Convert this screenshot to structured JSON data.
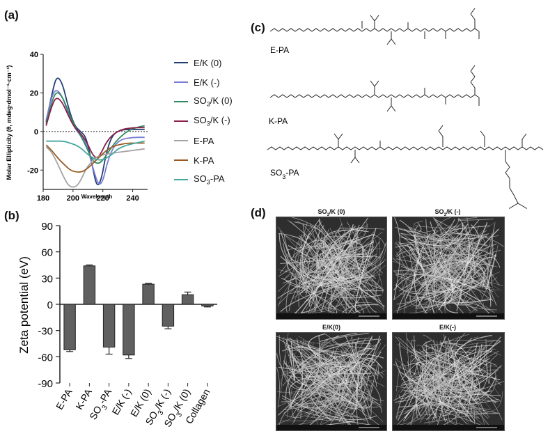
{
  "labels": {
    "a": "(a)",
    "b": "(b)",
    "c": "(c)",
    "d": "(d)"
  },
  "chart_data": [
    {
      "type": "line",
      "panel": "a",
      "title": "",
      "xlabel": "Wavelength",
      "ylabel": "Molar Ellipticity (θ, mdeg·dmol⁻¹·cm⁻¹)",
      "xlim": [
        180,
        250
      ],
      "ylim": [
        -30,
        40
      ],
      "xticks": [
        "180",
        "200",
        "220",
        "240"
      ],
      "yticks": [
        "40",
        "20",
        "0",
        "-20"
      ],
      "zero_line": "dotted",
      "series": [
        {
          "name": "E/K (0)",
          "color": "#1f3f73",
          "x": [
            182,
            186,
            189,
            193,
            197,
            201,
            205,
            209,
            213,
            216,
            219,
            222,
            226,
            232,
            240,
            248
          ],
          "y": [
            5,
            20,
            29,
            25,
            12,
            3,
            0,
            -3,
            -18,
            -29,
            -25,
            -12,
            -2,
            1,
            1,
            1
          ]
        },
        {
          "name": "E/K (-)",
          "color": "#7a7ad8",
          "x": [
            182,
            186,
            189,
            193,
            197,
            201,
            205,
            209,
            213,
            217,
            220,
            223,
            227,
            232,
            240,
            248
          ],
          "y": [
            6,
            19,
            22,
            18,
            9,
            2,
            -2,
            -6,
            -18,
            -28,
            -26,
            -16,
            -8,
            -4,
            -3,
            -3
          ]
        },
        {
          "name": "SO3/K (0)",
          "color": "#2f8a5c",
          "x": [
            182,
            186,
            189,
            193,
            197,
            201,
            205,
            209,
            213,
            217,
            221,
            225,
            230,
            236,
            242,
            248
          ],
          "y": [
            4,
            16,
            21,
            18,
            10,
            3,
            -2,
            -8,
            -15,
            -17,
            -14,
            -9,
            -4,
            0,
            2,
            3
          ]
        },
        {
          "name": "SO3/K (-)",
          "color": "#8a1f4a",
          "x": [
            182,
            186,
            189,
            193,
            197,
            201,
            205,
            209,
            213,
            216,
            219,
            222,
            226,
            232,
            240,
            248
          ],
          "y": [
            3,
            14,
            18,
            15,
            8,
            2,
            -1,
            -5,
            -12,
            -14,
            -11,
            -6,
            -2,
            1,
            2,
            2
          ]
        },
        {
          "name": "E-PA",
          "color": "#a3a3a3",
          "x": [
            182,
            185,
            188,
            191,
            194,
            197,
            200,
            203,
            206,
            209,
            212,
            216,
            220,
            228,
            238,
            248
          ],
          "y": [
            -8,
            -10,
            -14,
            -19,
            -24,
            -28,
            -29,
            -28,
            -24,
            -19,
            -16,
            -13,
            -12,
            -11,
            -10,
            -9
          ]
        },
        {
          "name": "K-PA",
          "color": "#9a5b22",
          "x": [
            182,
            186,
            190,
            194,
            198,
            202,
            206,
            210,
            214,
            218,
            222,
            226,
            230,
            236,
            242,
            248
          ],
          "y": [
            -7,
            -10,
            -14,
            -17,
            -20,
            -21,
            -21,
            -19,
            -16,
            -13,
            -10,
            -8,
            -7,
            -6,
            -6,
            -6
          ]
        },
        {
          "name": "SO3-PA",
          "color": "#46a6a0",
          "x": [
            182,
            186,
            190,
            194,
            198,
            202,
            206,
            210,
            214,
            218,
            222,
            226,
            230,
            236,
            242,
            248
          ],
          "y": [
            -5,
            -5,
            -5,
            -5,
            -6,
            -7,
            -9,
            -12,
            -14,
            -15,
            -14,
            -12,
            -9,
            -7,
            -6,
            -5
          ]
        }
      ]
    },
    {
      "type": "bar",
      "panel": "b",
      "title": "",
      "xlabel": "",
      "ylabel": "Zeta potential (eV)",
      "ylim": [
        -90,
        90
      ],
      "yticks": [
        "90",
        "60",
        "30",
        "0",
        "-30",
        "-60",
        "-90"
      ],
      "categories": [
        "E-PA",
        "K-PA",
        "SO3-PA",
        "E/K (-)",
        "E/K (0)",
        "SO3/K (-)",
        "SO3/K (0)",
        "Collagen"
      ],
      "values": [
        -52,
        44,
        -49,
        -58,
        23,
        -25,
        11,
        -2
      ],
      "errors": [
        2,
        1,
        8,
        4,
        1,
        3,
        3,
        1
      ],
      "bar_color": "#606060"
    }
  ],
  "legend": [
    "E/K (0)",
    "E/K (-)",
    "SO3/K (0)",
    "SO3/K (-)",
    "E-PA",
    "K-PA",
    "SO3-PA"
  ],
  "structures": {
    "e_pa": "E-PA",
    "k_pa": "K-PA",
    "so3_pa": "SO3-PA"
  },
  "sem": {
    "tl": "SO3/K (0)",
    "tr": "SO3/K (-)",
    "bl": "E/K(0)",
    "br": "E/K(-)"
  }
}
